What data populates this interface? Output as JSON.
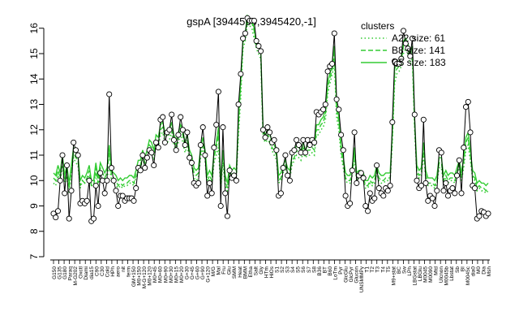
{
  "chart_data": {
    "type": "line",
    "title": "gspA [3944560,3945420,-1]",
    "xlabel": "",
    "ylabel": "",
    "ylim": [
      7,
      16.6
    ],
    "yticks": [
      7,
      8,
      9,
      10,
      11,
      12,
      13,
      14,
      15,
      16
    ],
    "grid": false,
    "legend": {
      "title": "clusters",
      "placement": "top-right",
      "entries": [
        "A22 size: 61",
        "B8 size: 141",
        "C5 size: 183"
      ]
    },
    "colors": {
      "expression": "#000000",
      "clusters": "#33cc33"
    },
    "xtick_labels": [
      "G150",
      "G135",
      "G180",
      "Paraq",
      "M-G202",
      "Oxctl",
      "Diami",
      "dia15",
      "C90",
      "C30",
      "Cold",
      "HPh",
      "aero",
      "nit",
      "ferm",
      "GM+150",
      "M0+150",
      "M-G+120",
      "M0+120",
      "M0+45",
      "M0+60",
      "M0+90",
      "M0+30",
      "M0+15",
      "M0+20",
      "G+30",
      "G+45",
      "G+60",
      "G+90",
      "G+120",
      "M/G",
      "Mal",
      "Fru",
      "Glu",
      "SMM",
      "Heat",
      "BMM",
      "Etha",
      "Salt",
      "Gly",
      "HTm",
      "HiOs",
      "S1",
      "S2",
      "S3",
      "S4",
      "S5",
      "S6",
      "S7",
      "S8",
      "B36",
      "BT",
      "B60",
      "LoTm",
      "Pyr",
      "GlcGlu",
      "GlcPyr",
      "Glucon",
      "UNSMMPy",
      "T1",
      "T2",
      "T3",
      "T4",
      "T5",
      "M9+stat",
      "BC",
      "Sw",
      "LPh",
      "LBGstat",
      "LBGlu",
      "M0045",
      "M0090",
      "Mtd",
      "Ulcnon",
      "M0045b",
      "Lbstat",
      "Sb",
      "BI",
      "M0045c",
      "dia0",
      "M0",
      "Dia",
      "Msh"
    ],
    "series": [
      {
        "name": "",
        "values": [
          8.7,
          8.55,
          8.8,
          10.0,
          11.0,
          9.5,
          10.6,
          8.5,
          9.6,
          11.5,
          11.2,
          11.0,
          9.1,
          9.2,
          9.1,
          9.2,
          10.0,
          8.4,
          8.5,
          9.8,
          9.0,
          10.3,
          10.0,
          9.5,
          10.0,
          13.4,
          10.5,
          10.0,
          9.6,
          9.0,
          9.4,
          9.4,
          9.2,
          9.3,
          9.3,
          9.3,
          9.2,
          9.7,
          10.5,
          10.4,
          11.0,
          10.5,
          10.9,
          11.2,
          11.1,
          10.6,
          11.5,
          11.3,
          12.4,
          12.5,
          11.5,
          11.9,
          12.0,
          12.6,
          11.6,
          11.2,
          11.8,
          12.5,
          12.0,
          11.4,
          11.9,
          10.9,
          10.7,
          9.9,
          9.8,
          9.9,
          11.4,
          12.1,
          11.0,
          9.4,
          9.9,
          9.5,
          11.3,
          12.2,
          13.5,
          9.0,
          12.1,
          9.5,
          8.6,
          10.4,
          10.1,
          10.2,
          10.0,
          13.0,
          14.2,
          15.6,
          15.8,
          16.4,
          16.3,
          16.3,
          16.3,
          15.5,
          15.3,
          15.1,
          12.0,
          11.7,
          12.1,
          11.9,
          11.5,
          11.6,
          11.2,
          9.4,
          9.5,
          10.5,
          11.0,
          10.2,
          10.0,
          11.1,
          11.2,
          11.6,
          11.4,
          11.1,
          11.6,
          11.1,
          11.6,
          11.4,
          11.6,
          11.5,
          12.7,
          12.6,
          12.7,
          12.8,
          13.0,
          14.3,
          14.5,
          14.6,
          15.8,
          13.2,
          12.8,
          11.8,
          11.2,
          9.4,
          9.0,
          9.1,
          10.4,
          11.9,
          9.9,
          10.2,
          10.3,
          10.1,
          9.0,
          8.8,
          9.5,
          9.2,
          9.3,
          10.6,
          9.7,
          9.5,
          9.4,
          9.7,
          9.6,
          9.8,
          12.3,
          14.7,
          14.6,
          14.6,
          14.8,
          15.9,
          15.4,
          15.2,
          14.9,
          15.6,
          12.6,
          10.0,
          9.7,
          9.8,
          12.4,
          9.9,
          9.2,
          9.4,
          9.3,
          9.0,
          9.6,
          11.2,
          11.1,
          9.6,
          9.9,
          9.4,
          9.6,
          9.7,
          9.5,
          10.2,
          10.8,
          9.5,
          11.3,
          12.9,
          13.1,
          11.9,
          9.8,
          9.7,
          8.5,
          8.6,
          8.8,
          8.75,
          8.6,
          8.7
        ],
        "color": "#000000"
      },
      {
        "name": "A22 size: 61",
        "values": [
          9.9,
          9.8,
          10.2,
          9.9,
          10.6,
          9.9,
          10.1,
          9.5,
          10.3,
          10.9,
          10.7,
          10.6,
          9.7,
          10.0,
          9.9,
          10.0,
          10.2,
          9.8,
          9.8,
          10.3,
          9.8,
          10.3,
          10.1,
          9.9,
          10.1,
          10.6,
          10.0,
          9.9,
          9.8,
          9.7,
          9.8,
          9.7,
          9.8,
          9.8,
          9.9,
          9.9,
          9.8,
          10.1,
          10.4,
          10.4,
          10.9,
          10.5,
          10.9,
          11.2,
          11.1,
          10.8,
          11.4,
          11.3,
          11.8,
          11.9,
          11.5,
          11.5,
          11.6,
          11.9,
          11.4,
          11.2,
          11.5,
          11.8,
          11.5,
          11.1,
          11.4,
          10.8,
          10.6,
          10.1,
          10.0,
          10.1,
          10.9,
          11.3,
          10.8,
          9.8,
          10.0,
          9.8,
          10.7,
          11.0,
          11.3,
          9.7,
          10.7,
          9.8,
          9.6,
          10.3,
          10.1,
          10.2,
          10.1,
          11.8,
          13.3,
          15.2,
          15.5,
          16.2,
          16.1,
          16.0,
          15.6,
          15.2,
          15.0,
          14.8,
          11.7,
          11.5,
          11.6,
          11.5,
          11.2,
          11.0,
          10.8,
          9.9,
          10.0,
          10.3,
          10.5,
          10.2,
          10.1,
          10.6,
          10.8,
          11.0,
          10.9,
          10.8,
          11.1,
          10.9,
          11.0,
          11.0,
          11.1,
          11.0,
          11.8,
          11.8,
          12.0,
          12.1,
          12.4,
          13.4,
          13.8,
          14.2,
          14.6,
          12.5,
          12.0,
          11.0,
          10.5,
          10.0,
          9.9,
          9.9,
          10.2,
          10.9,
          10.0,
          10.1,
          10.1,
          10.0,
          9.7,
          9.7,
          9.9,
          9.8,
          9.9,
          10.3,
          10.0,
          9.9,
          9.9,
          10.0,
          10.0,
          10.0,
          11.5,
          13.8,
          14.2,
          14.3,
          14.5,
          15.0,
          15.2,
          15.0,
          14.6,
          14.8,
          12.0,
          10.3,
          10.1,
          10.2,
          11.0,
          10.1,
          9.8,
          9.8,
          9.8,
          9.7,
          9.9,
          10.5,
          10.5,
          9.9,
          10.1,
          9.9,
          10.0,
          10.0,
          9.9,
          10.2,
          10.5,
          10.0,
          10.5,
          11.2,
          11.4,
          10.8,
          10.1,
          10.0,
          9.6,
          9.7,
          9.6,
          9.6,
          9.5,
          9.6
        ],
        "color": "#33cc33"
      },
      {
        "name": "B8 size: 141",
        "values": [
          10.1,
          10.0,
          10.4,
          10.1,
          10.9,
          10.0,
          10.4,
          9.7,
          10.4,
          11.1,
          10.9,
          10.8,
          9.8,
          10.0,
          9.9,
          10.1,
          10.4,
          9.8,
          9.8,
          10.5,
          9.9,
          10.5,
          10.3,
          10.1,
          10.3,
          11.1,
          10.2,
          10.1,
          10.0,
          9.8,
          9.9,
          9.8,
          9.9,
          9.9,
          10.0,
          10.0,
          9.9,
          10.2,
          10.6,
          10.6,
          11.0,
          10.7,
          11.0,
          11.4,
          11.3,
          11.0,
          11.6,
          11.5,
          12.0,
          12.1,
          11.7,
          11.8,
          11.8,
          12.1,
          11.6,
          11.4,
          11.7,
          12.0,
          11.8,
          11.3,
          11.6,
          11.0,
          10.8,
          10.3,
          10.2,
          10.3,
          11.1,
          11.5,
          11.0,
          10.0,
          10.2,
          10.0,
          10.9,
          11.3,
          11.8,
          9.8,
          11.0,
          10.0,
          9.7,
          10.4,
          10.2,
          10.3,
          10.2,
          12.2,
          13.8,
          15.4,
          15.7,
          16.4,
          16.3,
          16.2,
          15.9,
          15.3,
          15.2,
          15.0,
          11.9,
          11.6,
          11.8,
          11.7,
          11.3,
          11.2,
          11.0,
          10.0,
          10.1,
          10.4,
          10.6,
          10.3,
          10.2,
          10.8,
          10.9,
          11.2,
          11.1,
          11.0,
          11.3,
          11.0,
          11.2,
          11.2,
          11.3,
          11.2,
          12.0,
          12.0,
          12.2,
          12.3,
          12.6,
          13.7,
          14.0,
          14.4,
          15.0,
          12.8,
          12.3,
          11.2,
          10.7,
          10.1,
          10.0,
          10.0,
          10.3,
          11.1,
          10.1,
          10.2,
          10.2,
          10.1,
          9.8,
          9.8,
          10.0,
          9.9,
          10.0,
          10.4,
          10.1,
          10.0,
          10.0,
          10.1,
          10.1,
          10.1,
          11.7,
          14.2,
          14.4,
          14.5,
          14.7,
          15.3,
          15.4,
          15.2,
          14.8,
          15.1,
          12.2,
          10.4,
          10.2,
          10.3,
          11.3,
          10.2,
          9.9,
          9.9,
          9.9,
          9.8,
          10.0,
          10.7,
          10.7,
          10.0,
          10.2,
          10.0,
          10.1,
          10.1,
          10.0,
          10.3,
          10.6,
          10.1,
          10.7,
          11.5,
          11.7,
          11.0,
          10.2,
          10.1,
          9.7,
          9.8,
          9.7,
          9.7,
          9.6,
          9.7
        ],
        "color": "#33cc33"
      },
      {
        "name": "C5 size: 183",
        "values": [
          10.3,
          10.2,
          10.6,
          10.3,
          11.0,
          10.2,
          10.6,
          9.9,
          10.6,
          11.3,
          11.1,
          11.0,
          10.0,
          10.2,
          10.1,
          10.3,
          10.6,
          10.0,
          10.0,
          10.7,
          10.1,
          10.7,
          10.5,
          10.3,
          10.5,
          11.4,
          10.4,
          10.3,
          10.2,
          10.0,
          10.1,
          10.0,
          10.1,
          10.1,
          10.2,
          10.2,
          10.1,
          10.4,
          10.8,
          10.8,
          11.2,
          10.9,
          11.2,
          11.6,
          11.5,
          11.2,
          11.8,
          11.7,
          12.2,
          12.3,
          11.9,
          12.0,
          12.0,
          12.3,
          11.8,
          11.6,
          11.9,
          12.2,
          12.0,
          11.5,
          11.8,
          11.2,
          11.0,
          10.5,
          10.4,
          10.5,
          11.3,
          11.7,
          11.2,
          10.2,
          10.4,
          10.2,
          11.1,
          11.5,
          12.1,
          10.0,
          11.2,
          10.2,
          9.9,
          10.6,
          10.4,
          10.5,
          10.4,
          12.5,
          14.0,
          15.5,
          15.8,
          16.5,
          16.4,
          16.3,
          16.0,
          15.4,
          15.3,
          15.1,
          12.1,
          11.8,
          12.0,
          11.9,
          11.5,
          11.4,
          11.2,
          10.2,
          10.3,
          10.6,
          10.8,
          10.5,
          10.4,
          11.0,
          11.1,
          11.4,
          11.3,
          11.2,
          11.5,
          11.2,
          11.4,
          11.4,
          11.5,
          11.4,
          12.2,
          12.2,
          12.4,
          12.5,
          12.8,
          13.9,
          14.2,
          14.6,
          15.3,
          13.0,
          12.5,
          11.4,
          10.9,
          10.3,
          10.2,
          10.2,
          10.5,
          11.3,
          10.3,
          10.4,
          10.4,
          10.3,
          10.0,
          10.0,
          10.2,
          10.1,
          10.2,
          10.6,
          10.3,
          10.2,
          10.2,
          10.3,
          10.3,
          10.3,
          11.9,
          14.4,
          14.6,
          14.7,
          14.9,
          15.5,
          15.6,
          15.4,
          15.0,
          15.3,
          12.4,
          10.6,
          10.4,
          10.5,
          11.5,
          10.4,
          10.1,
          10.1,
          10.1,
          10.0,
          10.2,
          10.9,
          10.9,
          10.2,
          10.4,
          10.2,
          10.3,
          10.3,
          10.2,
          10.5,
          10.8,
          10.3,
          10.9,
          11.7,
          11.9,
          11.2,
          10.4,
          10.3,
          9.9,
          10.0,
          9.9,
          9.9,
          9.8,
          9.9
        ],
        "color": "#33cc33"
      }
    ]
  }
}
